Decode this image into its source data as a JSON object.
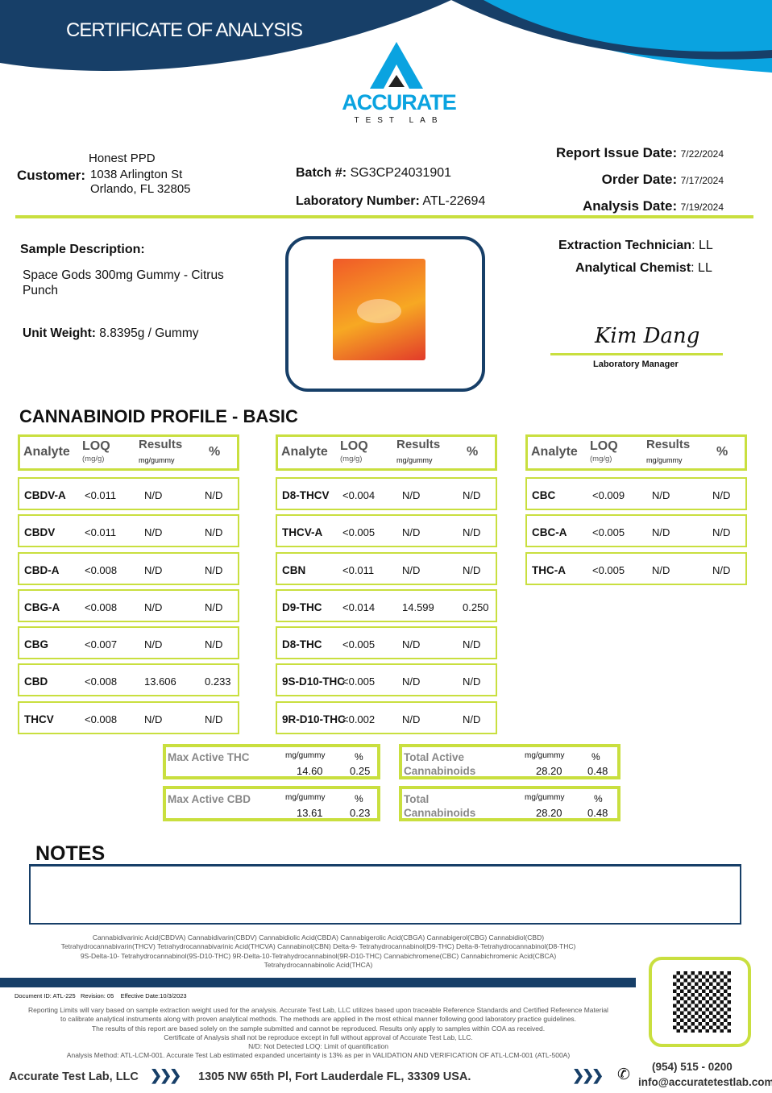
{
  "header": {
    "title": "CERTIFICATE OF ANALYSIS",
    "logo_text": "ACCURATE",
    "logo_sub": "TEST LAB",
    "colors": {
      "navy": "#173f68",
      "blue": "#0aa3e0",
      "lime": "#c9df3f"
    }
  },
  "customer": {
    "label": "Customer",
    "name": "Honest PPD",
    "address1": "1038 Arlington St",
    "address2": "Orlando, FL 32805"
  },
  "batch": {
    "label": "Batch #:",
    "value": "SG3CP24031901"
  },
  "lab_number": {
    "label": "Laboratory Number:",
    "value": "ATL-22694"
  },
  "dates": [
    {
      "label": "Report Issue Date:",
      "value": "7/22/2024"
    },
    {
      "label": "Order Date:",
      "value": "7/17/2024"
    },
    {
      "label": "Analysis Date:",
      "value": "7/19/2024"
    }
  ],
  "sample": {
    "label": "Sample Description:",
    "value": "Space Gods 300mg Gummy - Citrus Punch",
    "unit_weight_label": "Unit Weight:",
    "unit_weight": "8.8395g / Gummy"
  },
  "staff": {
    "tech_label": "Extraction Technician",
    "tech": "LL",
    "chemist_label": "Analytical Chemist",
    "chemist": "LL",
    "signature": "Kim Dang",
    "manager_label": "Laboratory Manager"
  },
  "profile_title": "CANNABINOID PROFILE - BASIC",
  "table_header": {
    "analyte": "Analyte",
    "loq": "LOQ",
    "loq_unit": "(mg/g)",
    "results": "Results",
    "results_unit": "mg/gummy",
    "pct": "%"
  },
  "columns": [
    [
      [
        "CBDV-A",
        "<0.011",
        "N/D",
        "N/D"
      ],
      [
        "CBDV",
        "<0.011",
        "N/D",
        "N/D"
      ],
      [
        "CBD-A",
        "<0.008",
        "N/D",
        "N/D"
      ],
      [
        "CBG-A",
        "<0.008",
        "N/D",
        "N/D"
      ],
      [
        "CBG",
        "<0.007",
        "N/D",
        "N/D"
      ],
      [
        "CBD",
        "<0.008",
        "13.606",
        "0.233"
      ],
      [
        "THCV",
        "<0.008",
        "N/D",
        "N/D"
      ]
    ],
    [
      [
        "D8-THCV",
        "<0.004",
        "N/D",
        "N/D"
      ],
      [
        "THCV-A",
        "<0.005",
        "N/D",
        "N/D"
      ],
      [
        "CBN",
        "<0.011",
        "N/D",
        "N/D"
      ],
      [
        "D9-THC",
        "<0.014",
        "14.599",
        "0.250"
      ],
      [
        "D8-THC",
        "<0.005",
        "N/D",
        "N/D"
      ],
      [
        "9S-D10-THC",
        "<0.005",
        "N/D",
        "N/D"
      ],
      [
        "9R-D10-THC",
        "<0.002",
        "N/D",
        "N/D"
      ]
    ],
    [
      [
        "CBC",
        "<0.009",
        "N/D",
        "N/D"
      ],
      [
        "CBC-A",
        "<0.005",
        "N/D",
        "N/D"
      ],
      [
        "THC-A",
        "<0.005",
        "N/D",
        "N/D"
      ]
    ]
  ],
  "summary": [
    {
      "title": "Max Active THC",
      "unit": "mg/gummy",
      "pct_label": "%",
      "mg": "14.60",
      "pct": "0.25"
    },
    {
      "title": "Total Active Cannabinoids",
      "unit": "mg/gummy",
      "pct_label": "%",
      "mg": "28.20",
      "pct": "0.48"
    },
    {
      "title": "Max Active CBD",
      "unit": "mg/gummy",
      "pct_label": "%",
      "mg": "13.61",
      "pct": "0.23"
    },
    {
      "title": "Total Cannabinoids",
      "unit": "mg/gummy",
      "pct_label": "%",
      "mg": "28.20",
      "pct": "0.48"
    }
  ],
  "notes_title": "NOTES",
  "glossary": [
    "Cannabidivarinic Acid(CBDVA)  Cannabidivarin(CBDV)  Cannabidiolic Acid(CBDA)  Cannabigerolic Acid(CBGA)  Cannabigerol(CBG)  Cannabidiol(CBD)",
    "Tetrahydrocannabivarin(THCV)  Tetrahydrocannabivarinic Acid(THCVA)  Cannabinol(CBN)  Delta-9- Tetrahydrocannabinol(D9-THC)  Delta-8-Tetrahydrocannabinol(D8-THC)",
    "9S-Delta-10- Tetrahydrocannabinol(9S-D10-THC)  9R-Delta-10-Tetrahydrocannabinol(9R-D10-THC)  Cannabichromene(CBC)  Cannabichromenic Acid(CBCA)",
    "Tetrahydrocannabinolic Acid(THCA)"
  ],
  "document_id": "Document ID: ATL-225   Revision: 05    Effective Date:10/3/2023",
  "disclaimer": [
    "Reporting Limits will vary based on sample extraction weight used for the analysis. Accurate Test Lab, LLC utilizes based upon traceable Reference Standards and Certified Reference Material",
    "to calibrate analytical instruments along with proven analytical methods. The methods are applied in the most ethical manner following good laboratory practice guidelines.",
    "The results of this report are based solely on the sample submitted and cannot be reproduced. Results only apply to samples within COA as received.",
    "Certificate of Analysis shall not be reproduce except in full without approval of Accurate Test Lab, LLC.",
    "N/D: Not Detected   LOQ: Limit of quantification",
    "Analysis Method: ATL-LCM-001.    Accurate Test Lab estimated expanded uncertainty is 13% as per in VALIDATION AND VERIFICATION OF ATL-LCM-001 (ATL-500A)"
  ],
  "footer": {
    "company": "Accurate Test Lab, LLC",
    "address": "1305 NW 65th Pl, Fort Lauderdale FL, 33309 USA.",
    "phone": "(954) 515 - 0200",
    "email": "info@accuratetestlab.com",
    "icons": [
      "chevrons-right-icon",
      "phone-icon",
      "qr-code-icon"
    ]
  }
}
